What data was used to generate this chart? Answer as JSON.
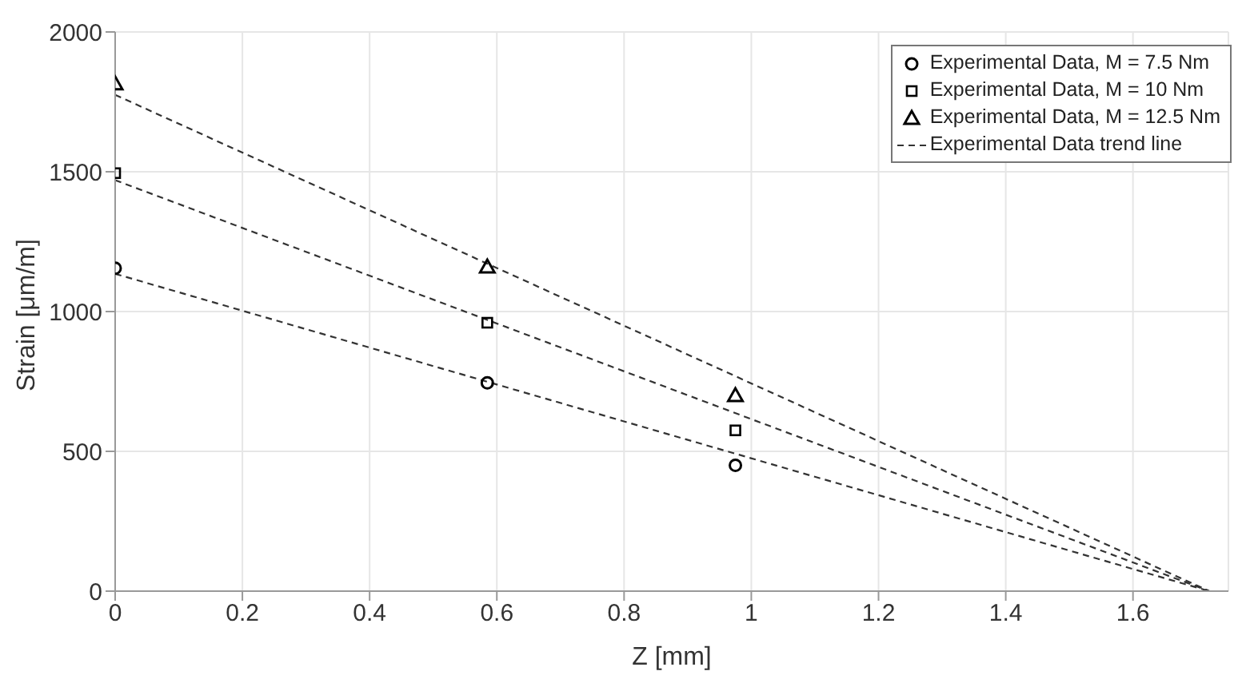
{
  "chart_data": {
    "type": "scatter",
    "xlabel": "Z [mm]",
    "ylabel": "Strain [μm/m]",
    "xlim": [
      0,
      1.75
    ],
    "xticks": [
      0,
      0.2,
      0.4,
      0.6,
      0.8,
      1,
      1.2,
      1.4,
      1.6
    ],
    "ylim": [
      0,
      2000
    ],
    "yticks": [
      0,
      500,
      1000,
      1500,
      2000
    ],
    "grid": true,
    "legend": "top right",
    "series": [
      {
        "name": "Experimental Data, M = 7.5 Nm",
        "marker": "circle",
        "color": "#000000",
        "x": [
          0,
          0.585,
          0.975
        ],
        "values": [
          1155,
          745,
          450
        ]
      },
      {
        "name": "Experimental Data, M = 10 Nm",
        "marker": "square",
        "color": "#000000",
        "x": [
          0,
          0.585,
          0.975
        ],
        "values": [
          1495,
          960,
          575
        ]
      },
      {
        "name": "Experimental Data, M = 12.5 Nm",
        "marker": "triangle",
        "color": "#000000",
        "x": [
          0,
          0.585,
          0.975
        ],
        "values": [
          1815,
          1160,
          700
        ]
      },
      {
        "name": "Experimental Data trend line",
        "type": "line",
        "line_style": "dashed",
        "color": "#333333",
        "x": [
          0,
          1.72
        ],
        "values": [
          1135,
          0
        ]
      },
      {
        "type": "line",
        "line_style": "dashed",
        "color": "#333333",
        "x": [
          0,
          1.72
        ],
        "values": [
          1470,
          0
        ]
      },
      {
        "type": "line",
        "line_style": "dashed",
        "color": "#333333",
        "x": [
          0,
          1.72
        ],
        "values": [
          1775,
          0
        ]
      }
    ]
  }
}
